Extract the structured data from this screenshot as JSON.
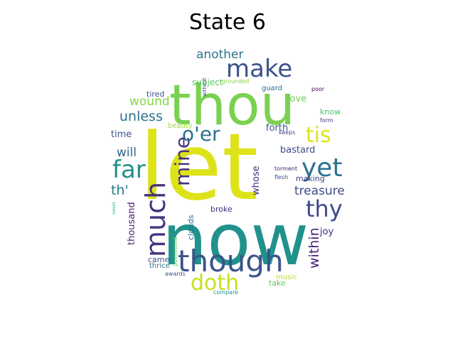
{
  "title": "State 6",
  "words": [
    {
      "text": "let",
      "color": "#dde318"
    },
    {
      "text": "now",
      "color": "#21918c"
    },
    {
      "text": "thou",
      "color": "#7ad151"
    },
    {
      "text": "though",
      "color": "#3b528b"
    },
    {
      "text": "make",
      "color": "#3b528b"
    },
    {
      "text": "yet",
      "color": "#2c728e"
    },
    {
      "text": "tis",
      "color": "#dde318"
    },
    {
      "text": "thy",
      "color": "#3e4a89"
    },
    {
      "text": "much",
      "color": "#46337e"
    },
    {
      "text": "far",
      "color": "#21918c"
    },
    {
      "text": "mine",
      "color": "#46337e"
    },
    {
      "text": "doth",
      "color": "#c8e020"
    },
    {
      "text": "o'er",
      "color": "#2c728e"
    },
    {
      "text": "treasure",
      "color": "#3e4a89"
    },
    {
      "text": "unless",
      "color": "#2c728e"
    },
    {
      "text": "another",
      "color": "#2c728e"
    },
    {
      "text": "wound",
      "color": "#86d549"
    },
    {
      "text": "within",
      "color": "#482475"
    },
    {
      "text": "th'",
      "color": "#287c8e"
    },
    {
      "text": "will",
      "color": "#31688e"
    },
    {
      "text": "whose",
      "color": "#472c7a"
    },
    {
      "text": "thousand",
      "color": "#482475"
    },
    {
      "text": "forth",
      "color": "#3b528b"
    },
    {
      "text": "love",
      "color": "#6ece58"
    },
    {
      "text": "joy",
      "color": "#472c7a"
    },
    {
      "text": "bastard",
      "color": "#3e4a89"
    },
    {
      "text": "time",
      "color": "#3b528b"
    },
    {
      "text": "subject",
      "color": "#5ec962"
    },
    {
      "text": "tired",
      "color": "#3b528b"
    },
    {
      "text": "know",
      "color": "#4ac16d"
    },
    {
      "text": "broke",
      "color": "#472c7a"
    },
    {
      "text": "making",
      "color": "#414487"
    },
    {
      "text": "came",
      "color": "#3b528b"
    },
    {
      "text": "take",
      "color": "#5ec962"
    },
    {
      "text": "clouds",
      "color": "#2c728e"
    },
    {
      "text": "music",
      "color": "#b5de2b"
    },
    {
      "text": "thrice",
      "color": "#2c728e"
    },
    {
      "text": "beauty",
      "color": "#a0da39"
    },
    {
      "text": "guard",
      "color": "#31688e"
    },
    {
      "text": "poor",
      "color": "#440154"
    },
    {
      "text": "grounded",
      "color": "#86d549"
    },
    {
      "text": "form",
      "color": "#46337e"
    },
    {
      "text": "keeps",
      "color": "#3e4a89"
    },
    {
      "text": "torment",
      "color": "#482475"
    },
    {
      "text": "flesh",
      "color": "#3e4a89"
    },
    {
      "text": "possessed",
      "color": "#5ec962"
    },
    {
      "text": "awards",
      "color": "#3b528b"
    },
    {
      "text": "compare",
      "color": "#21918c"
    },
    {
      "text": "without",
      "color": "#3e4a89"
    },
    {
      "text": "sweet",
      "color": "#35b779"
    }
  ]
}
